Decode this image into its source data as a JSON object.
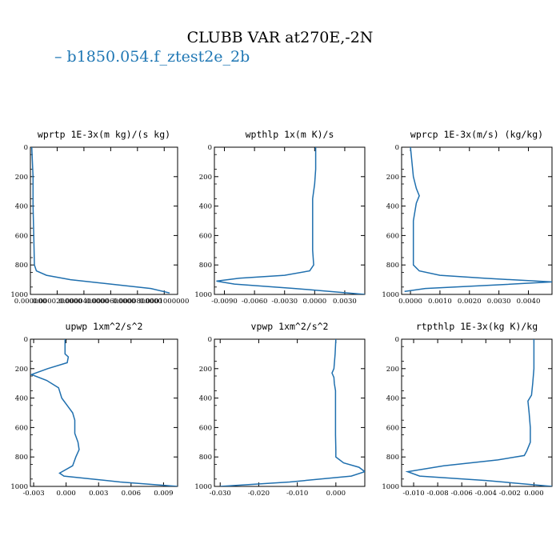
{
  "figure": {
    "title": "CLUBB VAR at270E,-2N",
    "legend_label": "b1850.054.f_ztest2e_2b",
    "legend_color": "#1f77b4",
    "line_color": "#1f6fae"
  },
  "chart_data": [
    {
      "type": "line",
      "title": "wprtp  1E-3x(m kg)/(s kg)",
      "xlim": [
        0,
        0.00011
      ],
      "ylim": [
        1000,
        0
      ],
      "xticks": [
        0,
        2e-05,
        4e-05,
        6e-05,
        8e-05,
        0.0001
      ],
      "xtick_labels": [
        "0.000000",
        "0.0000200000",
        "0.0000400000",
        "0.0000600000",
        "0.0000800000",
        "0.0001000000"
      ],
      "yticks": [
        0,
        200,
        400,
        600,
        800,
        1000
      ],
      "ytick_labels": [
        "0",
        "200",
        "400",
        "600",
        "800",
        "1000"
      ],
      "series": [
        {
          "x": [
            1e-06,
            1.5e-06,
            2e-06,
            2e-06,
            2.5e-06,
            3e-06,
            4.5e-06,
            1.2e-05,
            3e-05,
            6e-05,
            9e-05,
            0.000104
          ],
          "y": [
            0,
            100,
            200,
            400,
            600,
            800,
            840,
            870,
            900,
            930,
            960,
            990
          ]
        }
      ]
    },
    {
      "type": "line",
      "title": "wpthlp  1x(m K)/s",
      "xlim": [
        -0.01,
        0.005
      ],
      "ylim": [
        1000,
        0
      ],
      "xticks": [
        -0.009,
        -0.006,
        -0.003,
        0,
        0.003
      ],
      "xtick_labels": [
        "-0.0090",
        "-0.0060",
        "-0.0030",
        "0.0000",
        "0.0030"
      ],
      "yticks": [
        0,
        200,
        400,
        600,
        800,
        1000
      ],
      "ytick_labels": [
        "0",
        "200",
        "400",
        "600",
        "800",
        "1000"
      ],
      "series": [
        {
          "x": [
            0.0001,
            0.0001,
            0.0,
            -0.0002,
            -0.0002,
            -0.0002,
            -0.0002,
            -0.0001,
            -0.0005,
            -0.003,
            -0.0075,
            -0.0098,
            -0.008,
            -0.002,
            0.005
          ],
          "y": [
            0,
            150,
            250,
            350,
            450,
            550,
            700,
            800,
            840,
            870,
            890,
            910,
            930,
            960,
            1000
          ]
        }
      ]
    },
    {
      "type": "line",
      "title": "wprcp  1E-3x(m/s) (kg/kg)",
      "xlim": [
        -0.0003,
        0.0048
      ],
      "ylim": [
        1000,
        0
      ],
      "xticks": [
        0,
        0.001,
        0.002,
        0.003,
        0.004
      ],
      "xtick_labels": [
        "0.0000",
        "0.0010",
        "0.0020",
        "0.0030",
        "0.0040"
      ],
      "yticks": [
        0,
        200,
        400,
        600,
        800,
        1000
      ],
      "ytick_labels": [
        "0",
        "200",
        "400",
        "600",
        "800",
        "1000"
      ],
      "series": [
        {
          "x": [
            0.0,
            0.0001,
            0.0002,
            0.0003,
            0.0002,
            0.0001,
            0.0001,
            0.0001,
            0.0001,
            0.0003,
            0.001,
            0.0025,
            0.0048,
            0.003,
            0.0005,
            -0.0002
          ],
          "y": [
            0,
            200,
            280,
            330,
            380,
            500,
            650,
            780,
            800,
            840,
            870,
            890,
            915,
            935,
            960,
            980
          ]
        }
      ]
    },
    {
      "type": "line",
      "title": "upwp  1xm^2/s^2",
      "xlim": [
        -0.0033,
        0.0103
      ],
      "ylim": [
        1000,
        0
      ],
      "xticks": [
        -0.003,
        0,
        0.003,
        0.006,
        0.009
      ],
      "xtick_labels": [
        "-0.003",
        "0.000",
        "0.003",
        "0.006",
        "0.009"
      ],
      "yticks": [
        0,
        200,
        400,
        600,
        800,
        1000
      ],
      "ytick_labels": [
        "0",
        "200",
        "400",
        "600",
        "800",
        "1000"
      ],
      "series": [
        {
          "x": [
            -0.0001,
            -0.0001,
            0.0002,
            0.0001,
            -0.0017,
            -0.0032,
            -0.0018,
            -0.0007,
            -0.0004,
            0.0006,
            0.0008,
            0.0008,
            0.0011,
            0.0012,
            0.0009,
            0.0006,
            -0.0006,
            -0.0002,
            0.005,
            0.0103
          ],
          "y": [
            0,
            100,
            120,
            160,
            200,
            240,
            280,
            330,
            400,
            500,
            550,
            640,
            700,
            750,
            800,
            860,
            910,
            930,
            970,
            1000
          ]
        }
      ]
    },
    {
      "type": "line",
      "title": "vpwp  1xm^2/s^2",
      "xlim": [
        -0.0315,
        0.0075
      ],
      "ylim": [
        1000,
        0
      ],
      "xticks": [
        -0.03,
        -0.02,
        -0.01,
        0
      ],
      "xtick_labels": [
        "-0.030",
        "-0.020",
        "-0.010",
        "0.000"
      ],
      "yticks": [
        0,
        200,
        400,
        600,
        800,
        1000
      ],
      "ytick_labels": [
        "0",
        "200",
        "400",
        "600",
        "800",
        "1000"
      ],
      "series": [
        {
          "x": [
            0.0,
            -0.0002,
            -0.0005,
            -0.001,
            -0.0005,
            -0.0004,
            -0.0001,
            -0.0001,
            -0.0001,
            -0.0001,
            0.0,
            0.0,
            0.002,
            0.006,
            0.0075,
            0.004,
            -0.012,
            -0.03
          ],
          "y": [
            0,
            100,
            200,
            230,
            260,
            300,
            350,
            450,
            550,
            650,
            750,
            800,
            840,
            870,
            900,
            930,
            970,
            1000
          ]
        }
      ]
    },
    {
      "type": "line",
      "title": "rtpthlp  1E-3x(kg K)/kg",
      "xlim": [
        -0.011,
        0.0015
      ],
      "ylim": [
        1000,
        0
      ],
      "xticks": [
        -0.01,
        -0.008,
        -0.006,
        -0.004,
        -0.002,
        0
      ],
      "xtick_labels": [
        "-0.010",
        "-0.008",
        "-0.006",
        "-0.004",
        "-0.002",
        "0.000"
      ],
      "yticks": [
        0,
        200,
        400,
        600,
        800,
        1000
      ],
      "ytick_labels": [
        "0",
        "200",
        "400",
        "600",
        "800",
        "1000"
      ],
      "series": [
        {
          "x": [
            0.0,
            0.0,
            -0.0001,
            -0.0002,
            -0.0005,
            -0.0004,
            -0.0003,
            -0.0003,
            -0.0006,
            -0.0008,
            -0.003,
            -0.0075,
            -0.0105,
            -0.0095,
            -0.004,
            0.0015
          ],
          "y": [
            0,
            200,
            300,
            380,
            420,
            500,
            600,
            700,
            760,
            790,
            820,
            860,
            900,
            930,
            960,
            1000
          ]
        }
      ]
    }
  ]
}
